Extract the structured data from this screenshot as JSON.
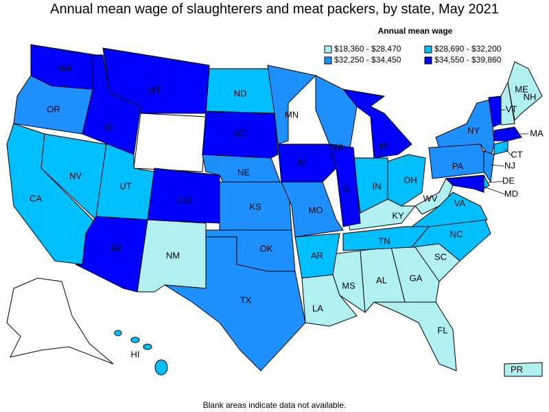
{
  "header": {
    "title": "Annual mean wage of slaughterers and meat packers, by state, May 2021"
  },
  "legend": {
    "title": "Annual mean wage",
    "items": [
      {
        "label": "$18,360 - $28,470",
        "color": "#b0f0f0",
        "states": [
          "ME",
          "NH",
          "KY",
          "WV",
          "SC",
          "GA",
          "AL",
          "MS",
          "LA",
          "FL",
          "NM",
          "PR"
        ]
      },
      {
        "label": "$28,690 - $32,200",
        "color": "#00bfff",
        "states": [
          "ND",
          "CA",
          "NV",
          "UT",
          "IN",
          "OH",
          "AR",
          "TN",
          "NC",
          "VA",
          "CT",
          "DE",
          "HI"
        ]
      },
      {
        "label": "$32,250 - $34,450",
        "color": "#1e90ff",
        "states": [
          "OR",
          "MN",
          "WI",
          "NE",
          "KS",
          "OK",
          "TX",
          "MO",
          "NY",
          "PA",
          "NJ"
        ]
      },
      {
        "label": "$34,550 - $39,860",
        "color": "#0000ff",
        "states": [
          "WA",
          "MT",
          "ID",
          "SD",
          "CO",
          "AZ",
          "IA",
          "IL",
          "MI",
          "MD",
          "MA",
          "VT"
        ]
      }
    ]
  },
  "note": "Blank areas indicate data not available."
}
